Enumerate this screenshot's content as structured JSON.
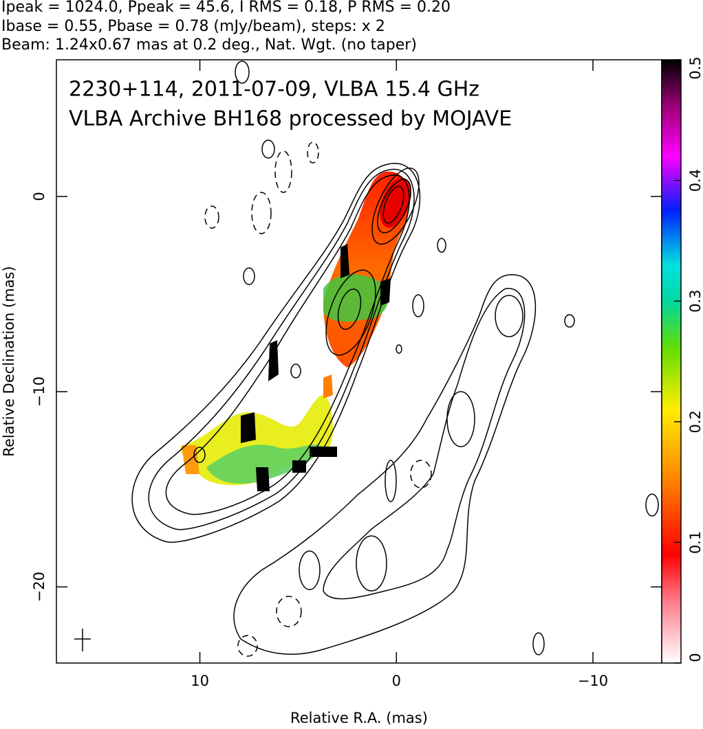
{
  "chart_data": {
    "type": "image",
    "header": [
      "Ipeak = 1024.0, Ppeak = 45.6, I RMS = 0.18, P RMS = 0.20",
      "Ibase = 0.55, Pbase = 0.78 (mJy/beam), steps: x 2",
      "Beam: 1.24x0.67 mas at 0.2 deg., Nat. Wgt. (no taper)"
    ],
    "title": [
      "2230+114, 2011-07-09, VLBA 15.4 GHz",
      "VLBA Archive BH168 processed by MOJAVE"
    ],
    "x_label": "Relative R.A. (mas)",
    "y_label": "Relative Declination (mas)",
    "xlim": [
      17.3,
      -13.5
    ],
    "ylim": [
      -23.9,
      7.0
    ],
    "xticks": [
      10,
      0,
      {
        "value": -10,
        "label": "−10"
      }
    ],
    "yticks": [
      0,
      {
        "value": -10,
        "label": "−10"
      },
      {
        "value": -20,
        "label": "−20"
      }
    ],
    "colorbar": {
      "lim": [
        0,
        0.5
      ],
      "ticks": [
        0,
        0.1,
        0.2,
        0.3,
        0.4,
        0.5
      ]
    }
  }
}
